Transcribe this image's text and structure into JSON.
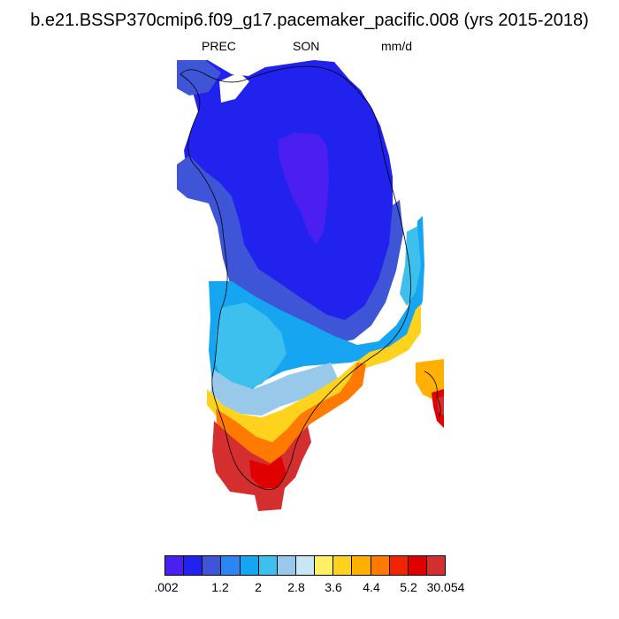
{
  "title": "b.e21.BSSP370cmip6.f09_g17.pacemaker_pacific.008 (yrs 2015-2018)",
  "variable": "PREC",
  "season": "SON",
  "units": "mm/d",
  "colorbar": {
    "colors": [
      "#4b1ff2",
      "#2222ee",
      "#3d55d6",
      "#2a86f2",
      "#16a5f0",
      "#3ec0ee",
      "#99c9ea",
      "#c8e6f4",
      "#fff066",
      "#ffd21e",
      "#ffb000",
      "#ff7a00",
      "#f22400",
      "#e00000",
      "#d42e2e"
    ],
    "tick_labels": [
      ".002",
      "1.2",
      "2",
      "2.8",
      "3.6",
      "4.4",
      "5.2",
      "30.054"
    ]
  }
}
